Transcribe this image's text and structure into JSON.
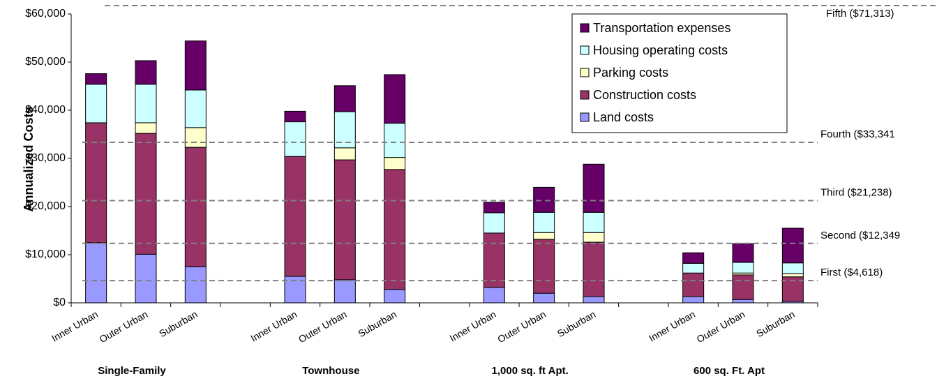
{
  "chart_data": {
    "type": "stacked_bar",
    "y_label": "Annualized Costs",
    "categories": [
      "Inner Urban",
      "Outer Urban",
      "Suburban",
      null,
      "Inner Urban",
      "Outer Urban",
      "Suburban",
      null,
      "Inner Urban",
      "Outer Urban",
      "Suburban",
      null,
      "Inner Urban",
      "Outer Urban",
      "Suburban"
    ],
    "groups": [
      "Single-Family",
      "Townhouse",
      "1,000 sq. ft Apt.",
      "600 sq. Ft.  Apt"
    ],
    "series": [
      {
        "name": "Land costs",
        "color": "#9999ff",
        "values": [
          12500,
          10100,
          7500,
          null,
          5500,
          4800,
          2800,
          null,
          3200,
          2000,
          1300,
          null,
          1300,
          700,
          300
        ]
      },
      {
        "name": "Construction costs",
        "color": "#993366",
        "values": [
          24900,
          25100,
          24800,
          null,
          24900,
          24900,
          24900,
          null,
          11300,
          11200,
          11300,
          null,
          4900,
          5100,
          5100
        ]
      },
      {
        "name": "Parking costs",
        "color": "#ffffcc",
        "values": [
          0,
          2200,
          4100,
          null,
          0,
          2500,
          2500,
          null,
          0,
          1400,
          2000,
          null,
          0,
          400,
          700
        ]
      },
      {
        "name": "Housing operating costs",
        "color": "#ccffff",
        "values": [
          8000,
          8000,
          7800,
          null,
          7200,
          7500,
          7100,
          null,
          4200,
          4200,
          4200,
          null,
          2000,
          2200,
          2200
        ]
      },
      {
        "name": "Transportation expenses",
        "color": "#660066",
        "values": [
          2200,
          4900,
          10200,
          null,
          2200,
          5400,
          10100,
          null,
          2200,
          5200,
          10000,
          null,
          2200,
          3900,
          7200
        ]
      }
    ],
    "ylim": [
      0,
      60000
    ],
    "yticks": [
      {
        "value": 0,
        "label": "$0"
      },
      {
        "value": 10000,
        "label": "$10,000"
      },
      {
        "value": 20000,
        "label": "$20,000"
      },
      {
        "value": 30000,
        "label": "$30,000"
      },
      {
        "value": 40000,
        "label": "$40,000"
      },
      {
        "value": 50000,
        "label": "$50,000"
      },
      {
        "value": 60000,
        "label": "$60,000"
      }
    ],
    "reference_lines": [
      {
        "value": 71313,
        "label": "Fifth ($71,313)"
      },
      {
        "value": 33341,
        "label": "Fourth ($33,341"
      },
      {
        "value": 21238,
        "label": "Third ($21,238)"
      },
      {
        "value": 12349,
        "label": "Second ($12,349"
      },
      {
        "value": 4618,
        "label": "First ($4,618)"
      }
    ],
    "legend_position": "upper right"
  }
}
